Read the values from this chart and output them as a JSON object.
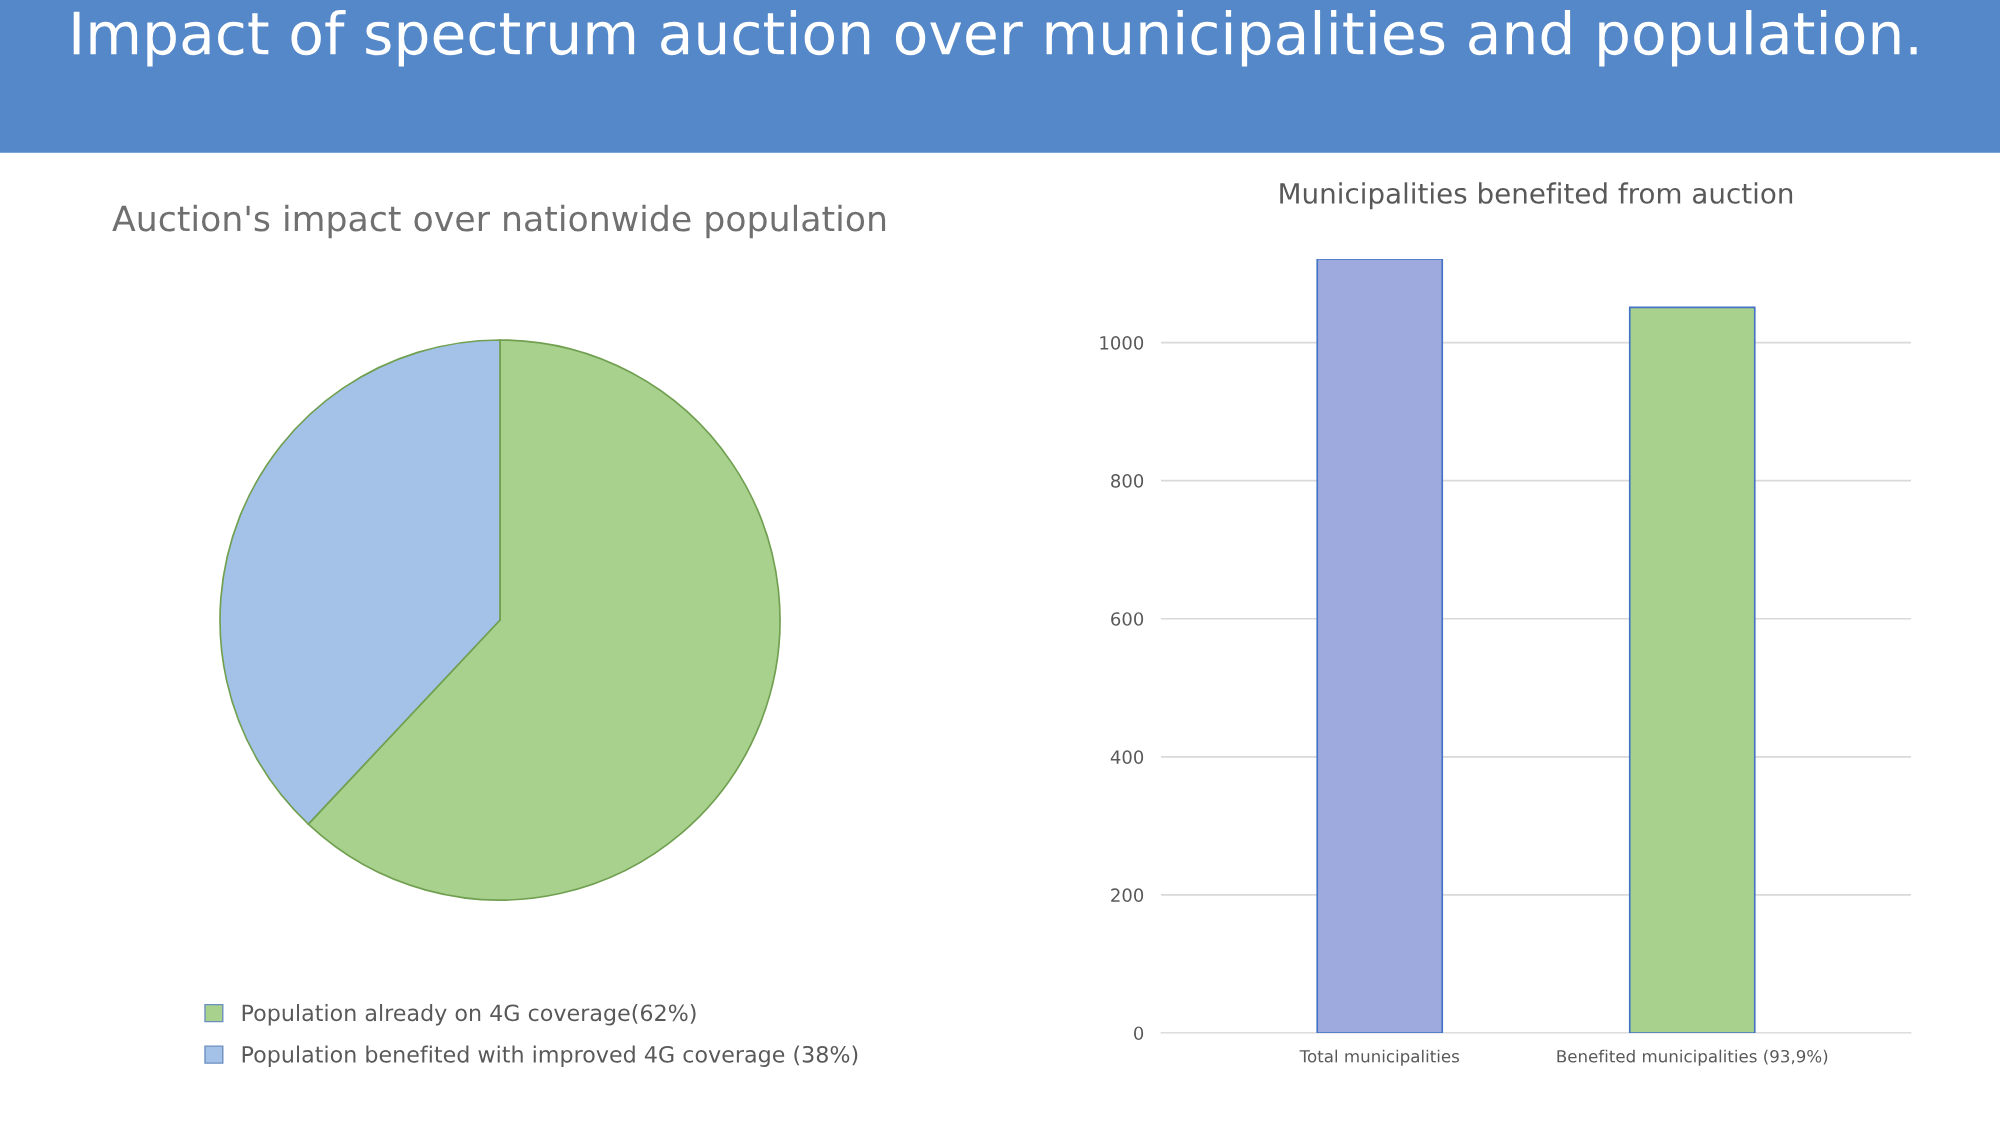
{
  "chart_data": [
    {
      "type": "pie",
      "title": "Auction's impact over nationwide population",
      "annotations": [
        "Impact of spectrum auction over municipalities and population."
      ],
      "categories": [
        "Population already on 4G coverage(62%)",
        "Population benefited with improved 4G coverage (38%)"
      ],
      "values": [
        62,
        38
      ],
      "colors": [
        "#a9d18e",
        "#a4c2e8"
      ],
      "legend": "bottom"
    },
    {
      "type": "bar",
      "title": "Municipalities benefited from auction",
      "categories": [
        "Total municipalities",
        "Benefited municipalities (93,9%)"
      ],
      "values": [
        1121,
        1051
      ],
      "colors": [
        "#9eaadd",
        "#a9d18e"
      ],
      "ylim": [
        0,
        1121
      ],
      "yticks": [
        0,
        200,
        400,
        600,
        800,
        1000
      ],
      "grid": "y"
    }
  ]
}
